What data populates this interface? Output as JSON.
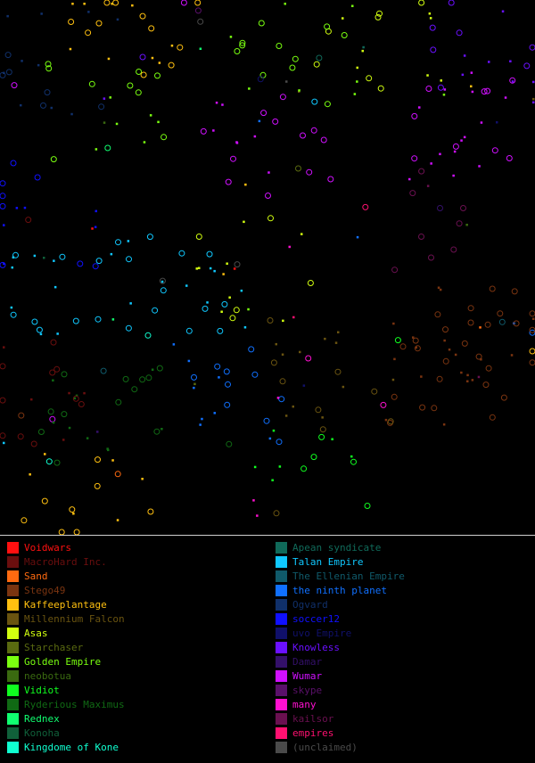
{
  "legend": {
    "left": [
      {
        "name": "Voidwars",
        "color": "#ff1010"
      },
      {
        "name": "MacroHard Inc.",
        "color": "#6a0e0e"
      },
      {
        "name": "Sand",
        "color": "#ff6a10"
      },
      {
        "name": "Stego49",
        "color": "#7a3410"
      },
      {
        "name": "Kaffeeplantage",
        "color": "#ffc010"
      },
      {
        "name": "Millennium Falcon",
        "color": "#6a5410"
      },
      {
        "name": "Asas",
        "color": "#d2ff10"
      },
      {
        "name": "Starchaser",
        "color": "#5a6a10"
      },
      {
        "name": "Golden Empire",
        "color": "#7aff10"
      },
      {
        "name": "neobotua",
        "color": "#3a6a10"
      },
      {
        "name": "Vidiot",
        "color": "#10ff20"
      },
      {
        "name": "Ryderious Maximus",
        "color": "#106a14"
      },
      {
        "name": "Rednex",
        "color": "#10ff70"
      },
      {
        "name": "Konoha",
        "color": "#10603a"
      },
      {
        "name": "Kingdome of Kone",
        "color": "#10ffd0"
      }
    ],
    "right": [
      {
        "name": "Apean syndicate",
        "color": "#106a5a"
      },
      {
        "name": "Talan Empire",
        "color": "#10c8ff"
      },
      {
        "name": "The Ellenian Empire",
        "color": "#105a6a"
      },
      {
        "name": "the ninth planet",
        "color": "#1070ff"
      },
      {
        "name": "Ogvard",
        "color": "#10306a"
      },
      {
        "name": "soccer12",
        "color": "#1010ff"
      },
      {
        "name": "uvo Empire",
        "color": "#10106a"
      },
      {
        "name": "Knowless",
        "color": "#6a10ff"
      },
      {
        "name": "Damar",
        "color": "#34106a"
      },
      {
        "name": "Wumar",
        "color": "#d010ff"
      },
      {
        "name": "skype",
        "color": "#5a106a"
      },
      {
        "name": "many",
        "color": "#ff10d0"
      },
      {
        "name": "kailsor",
        "color": "#6a1050"
      },
      {
        "name": "empires",
        "color": "#ff1070"
      },
      {
        "name": "(unclaimed)",
        "color": "#4a4a4a"
      }
    ]
  }
}
